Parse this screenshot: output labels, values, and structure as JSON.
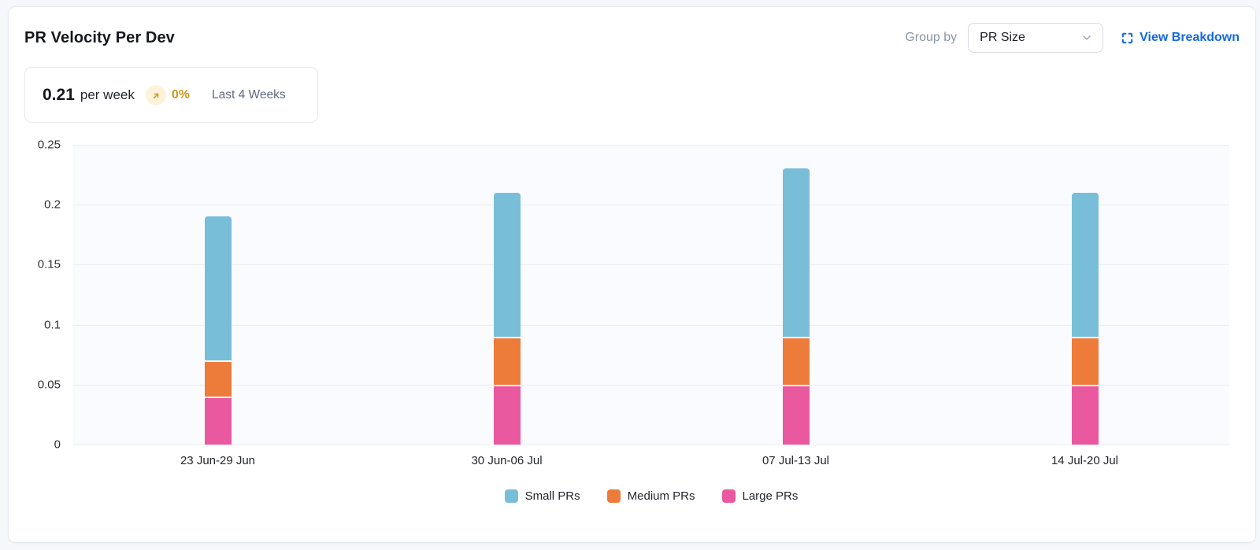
{
  "header": {
    "title": "PR Velocity Per Dev",
    "group_by_label": "Group by",
    "group_by_value": "PR Size",
    "view_breakdown_label": "View Breakdown"
  },
  "summary": {
    "value": "0.21",
    "unit": "per week",
    "trend_direction": "up",
    "trend_percent": "0%",
    "period": "Last 4 Weeks"
  },
  "icons": {
    "expand": "expand-icon",
    "chevron_down": "chevron-down-icon",
    "trend_arrow": "trend-up-arrow-icon"
  },
  "colors": {
    "accent_link": "#1569e2",
    "trend_amber": "#cf9718",
    "trend_badge_bg": "#fcf3da",
    "plot_background": "#fafbfe",
    "gridline": "#eceef2",
    "small_prs": "#79bed9",
    "medium_prs": "#ed7c3b",
    "large_prs": "#ea58a0"
  },
  "chart_data": {
    "type": "bar",
    "stacked": true,
    "title": "PR Velocity Per Dev",
    "xlabel": "",
    "ylabel": "",
    "categories": [
      "23 Jun-29 Jun",
      "30 Jun-06 Jul",
      "07 Jul-13 Jul",
      "14 Jul-20 Jul"
    ],
    "series": [
      {
        "name": "Small PRs",
        "color": "#79bed9",
        "values": [
          0.12,
          0.12,
          0.14,
          0.12
        ]
      },
      {
        "name": "Medium PRs",
        "color": "#ed7c3b",
        "values": [
          0.03,
          0.04,
          0.04,
          0.04
        ]
      },
      {
        "name": "Large PRs",
        "color": "#ea58a0",
        "values": [
          0.04,
          0.05,
          0.05,
          0.05
        ]
      }
    ],
    "stack_order_bottom_to_top": [
      "Large PRs",
      "Medium PRs",
      "Small PRs"
    ],
    "totals": [
      0.19,
      0.21,
      0.23,
      0.21
    ],
    "ylim": [
      0,
      0.25
    ],
    "y_ticks": [
      {
        "value": 0,
        "label": "0"
      },
      {
        "value": 0.05,
        "label": "0.05"
      },
      {
        "value": 0.1,
        "label": "0.1"
      },
      {
        "value": 0.15,
        "label": "0.15"
      },
      {
        "value": 0.2,
        "label": "0.2"
      },
      {
        "value": 0.25,
        "label": "0.25"
      }
    ],
    "grid": true,
    "legend_position": "bottom"
  }
}
